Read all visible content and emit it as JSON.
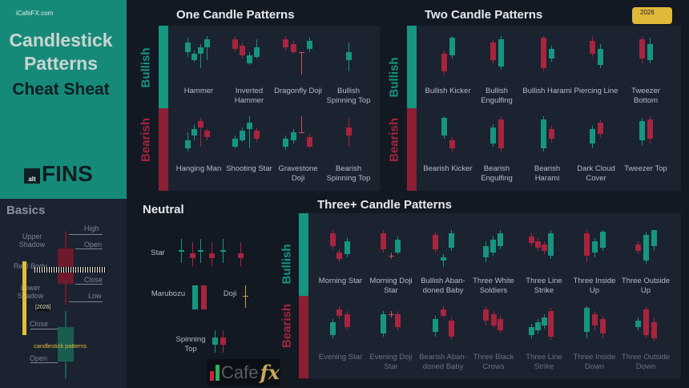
{
  "brand": {
    "site": "iCafeFX.com",
    "title": "Candlestick Patterns",
    "subtitle": "Cheat Sheat",
    "logo_alt": "alt",
    "logo_fins": "FINS",
    "badge": "2026"
  },
  "basics": {
    "title": "Basics",
    "labels": {
      "high": "High",
      "upper_shadow": "Upper Shadow",
      "open_top": "Open",
      "real_body": "Real Body",
      "close_top": "Close",
      "lower_shadow": "Lower Shadow",
      "low": "Low",
      "close_bottom": "Close",
      "open_bottom": "Open"
    },
    "year_tag": "[2026]",
    "caption": "candlestick patterns"
  },
  "sides": {
    "bullish": "Bullish",
    "bearish": "Bearish"
  },
  "one": {
    "title": "One Candle Patterns",
    "bullish": [
      "Hammer",
      "Inverted Hammer",
      "Dragonfly Doji",
      "Bullish Spinning Top"
    ],
    "bearish": [
      "Hanging Man",
      "Shooting Star",
      "Gravestone Doji",
      "Bearish Spinning Top"
    ]
  },
  "two": {
    "title": "Two Candle Patterns",
    "bullish": [
      "Bullish Kicker",
      "Bullish Engulfing",
      "Bullish Harami",
      "Piercing Line",
      "Tweezer Bottom"
    ],
    "bearish": [
      "Bearish Kicker",
      "Bearish Engulfing",
      "Bearish Harami",
      "Dark Cloud Cover",
      "Tweezer Top"
    ]
  },
  "neutral": {
    "title": "Neutral",
    "star": "Star",
    "marubozu": "Marubozu",
    "doji": "Doji",
    "spinning_top": "Spinning Top"
  },
  "three": {
    "title": "Three+ Candle Patterns",
    "bullish": [
      "Morning Star",
      "Morning Doji Star",
      "Bullish Aban-doned Baby",
      "Three White Soldiers",
      "Three Line Strike",
      "Three Inside Up",
      "Three Outside Up"
    ],
    "bearish": [
      "Evening Star",
      "Evening Doji Star",
      "Bearish Aban-doned Baby",
      "Three Black Crows",
      "Three Line Strike",
      "Three Inside Down",
      "Three Outside Down"
    ]
  },
  "watermark": {
    "text": "Cafe",
    "fx": "fx"
  },
  "colors": {
    "bull": "#169580",
    "bear": "#a8243f",
    "accent": "#e2bf3a"
  }
}
